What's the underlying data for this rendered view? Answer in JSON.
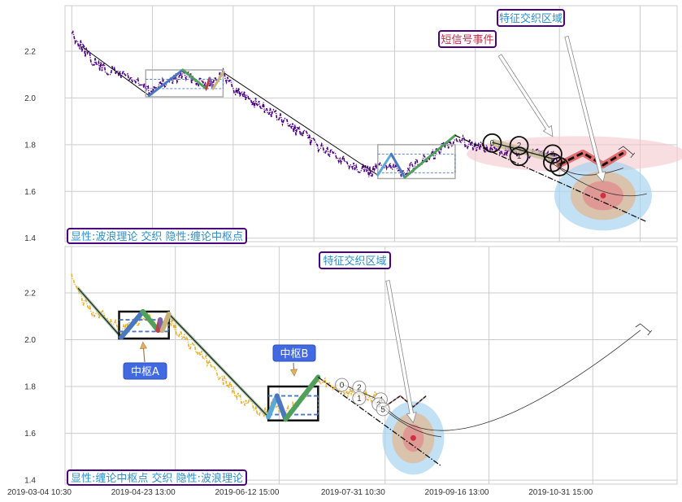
{
  "chart_data": [
    {
      "panel": "top",
      "type": "line",
      "xlim": [
        "2019-03-02",
        "2019-08-31"
      ],
      "ylim": [
        1.385,
        2.395
      ],
      "yticks": [
        1.4,
        1.6,
        1.8,
        2.0,
        2.2
      ],
      "ytick_labels": [
        "1.4",
        "1.6",
        "1.8",
        "2.0",
        "2.2"
      ],
      "xgrid_dates": [
        "2019-03-04",
        "2019-03-28",
        "2019-04-21",
        "2019-05-15",
        "2019-06-08",
        "2019-07-02",
        "2019-07-27",
        "2019-08-20"
      ],
      "grid": true,
      "legend_text": "显性:波浪理论 交织 隐性:缠论中枢点",
      "colors": {
        "price": "#4b0082",
        "legend_border": "#4b0082",
        "legend_text": "#2e8fc8"
      },
      "price_series": [
        [
          "2019-03-04",
          2.28
        ],
        [
          "2019-03-06",
          2.24
        ],
        [
          "2019-03-10",
          2.16
        ],
        [
          "2019-03-14",
          2.12
        ],
        [
          "2019-03-20",
          2.1
        ],
        [
          "2019-03-27",
          2.03
        ],
        [
          "2019-04-02",
          2.07
        ],
        [
          "2019-04-06",
          2.1
        ],
        [
          "2019-04-13",
          2.06
        ],
        [
          "2019-04-18",
          2.1
        ],
        [
          "2019-04-22",
          2.03
        ],
        [
          "2019-05-01",
          1.95
        ],
        [
          "2019-05-10",
          1.86
        ],
        [
          "2019-05-20",
          1.76
        ],
        [
          "2019-06-01",
          1.68
        ],
        [
          "2019-06-05",
          1.72
        ],
        [
          "2019-06-09",
          1.68
        ],
        [
          "2019-06-18",
          1.74
        ],
        [
          "2019-06-26",
          1.83
        ],
        [
          "2019-07-05",
          1.78
        ],
        [
          "2019-07-15",
          1.77
        ],
        [
          "2019-07-27",
          1.74
        ]
      ],
      "trend_lines": [
        [
          [
            "2019-03-07",
            2.22
          ],
          [
            "2019-03-27",
            2.01
          ]
        ],
        [
          [
            "2019-04-18",
            2.11
          ],
          [
            "2019-06-03",
            1.67
          ]
        ]
      ],
      "pivots": [
        {
          "name": "A",
          "from": "2019-03-26",
          "to": "2019-04-18",
          "high": 2.12,
          "low": 2.005,
          "inner_high": 2.08,
          "inner_low": 2.04
        },
        {
          "name": "B",
          "from": "2019-06-03",
          "to": "2019-06-26",
          "high": 1.8,
          "low": 1.655,
          "inner_high": 1.76,
          "inner_low": 1.68
        }
      ],
      "pivot_style": "thin-gray",
      "strokes": [
        {
          "from": [
            "2019-03-27",
            2.01
          ],
          "to": [
            "2019-04-06",
            2.12
          ],
          "color": "#4a78c0"
        },
        {
          "from": [
            "2019-04-06",
            2.12
          ],
          "to": [
            "2019-04-13",
            2.04
          ],
          "color": "#4ea05a"
        },
        {
          "from": [
            "2019-04-13",
            2.04
          ],
          "to": [
            "2019-04-14",
            2.085
          ],
          "color": "#c04040"
        },
        {
          "from": [
            "2019-04-14",
            2.085
          ],
          "to": [
            "2019-04-15",
            2.04
          ],
          "color": "#8060b0"
        },
        {
          "from": [
            "2019-04-15",
            2.04
          ],
          "to": [
            "2019-04-18",
            2.11
          ],
          "color": "#c8b478"
        },
        {
          "from": [
            "2019-06-03",
            1.67
          ],
          "to": [
            "2019-06-07",
            1.76
          ],
          "color": "#5aaad8"
        },
        {
          "from": [
            "2019-06-07",
            1.76
          ],
          "to": [
            "2019-06-11",
            1.66
          ],
          "color": "#4a78c0"
        },
        {
          "from": [
            "2019-06-11",
            1.66
          ],
          "to": [
            "2019-06-26",
            1.84
          ],
          "color": "#4ea05a"
        }
      ],
      "projection_line": [
        [
          "2019-06-26",
          1.84
        ],
        [
          "2019-08-22",
          1.47
        ]
      ],
      "signal_segment": [
        [
          "2019-07-07",
          1.81
        ],
        [
          "2019-07-25",
          1.74
        ]
      ],
      "signals": [
        {
          "label": "0",
          "date": "2019-07-07",
          "price": 1.807
        },
        {
          "label": "2",
          "date": "2019-07-15",
          "price": 1.796
        },
        {
          "label": "1",
          "date": "2019-07-15",
          "price": 1.75
        },
        {
          "label": "4",
          "date": "2019-07-25",
          "price": 1.76
        },
        {
          "label": "3",
          "date": "2019-07-25",
          "price": 1.724
        },
        {
          "label": "5",
          "date": "2019-07-27",
          "price": 1.706
        }
      ],
      "zigzag": [
        [
          "2019-07-27",
          1.715
        ],
        [
          "2019-08-03",
          1.765
        ],
        [
          "2019-08-09",
          1.713
        ],
        [
          "2019-08-15",
          1.765
        ]
      ],
      "zigzag_color": "#e06060",
      "interaction_zone_center": [
        "2019-08-03",
        1.76
      ],
      "target_center": [
        "2019-08-09",
        1.582
      ],
      "arcs": [
        [
          [
            "2019-07-27",
            1.705
          ],
          [
            "2019-08-04",
            1.67
          ],
          [
            "2019-08-15",
            1.7
          ]
        ],
        [
          [
            "2019-07-25",
            1.72
          ],
          [
            "2019-08-09",
            1.6
          ],
          [
            "2019-08-22",
            1.59
          ]
        ]
      ],
      "annotations": [
        {
          "text": "短信号事件",
          "color": "#c0304a",
          "target": [
            "2019-07-25",
            1.835
          ]
        },
        {
          "text": "特征交织区域",
          "color": "#2e8fc8",
          "target": [
            "2019-08-09",
            1.64
          ]
        }
      ]
    },
    {
      "panel": "bottom",
      "type": "line",
      "xlim": [
        "2019-03-01",
        "2019-12-09"
      ],
      "ylim": [
        1.383,
        2.398
      ],
      "yticks": [
        1.4,
        1.6,
        1.8,
        2.0,
        2.2
      ],
      "ytick_labels": [
        "1.4",
        "1.6",
        "1.8",
        "2.0",
        "2.2"
      ],
      "xticks": [
        {
          "date": "2019-03-04",
          "label": "2019-03-04 10:30"
        },
        {
          "date": "2019-04-21",
          "label": "2019-04-23 13:00"
        },
        {
          "date": "2019-06-08",
          "label": "2019-06-12 15:00"
        },
        {
          "date": "2019-07-27",
          "label": "2019-07-31 10:30"
        },
        {
          "date": "2019-09-13",
          "label": "2019-09-16 13:00"
        },
        {
          "date": "2019-10-31",
          "label": "2019-10-31 15:00"
        }
      ],
      "grid": true,
      "legend_text": "显性:缠论中枢点 交织 隐性:波浪理论",
      "colors": {
        "price": "#e8b030",
        "legend_border": "#4b0082",
        "legend_text": "#2e8fc8",
        "pivot_label_bg": "#4169e1",
        "pivot_arrow": "#e8a030"
      },
      "price_series": [
        [
          "2019-03-04",
          2.28
        ],
        [
          "2019-03-06",
          2.24
        ],
        [
          "2019-03-10",
          2.16
        ],
        [
          "2019-03-14",
          2.12
        ],
        [
          "2019-03-20",
          2.1
        ],
        [
          "2019-03-27",
          2.03
        ],
        [
          "2019-04-02",
          2.07
        ],
        [
          "2019-04-06",
          2.1
        ],
        [
          "2019-04-13",
          2.06
        ],
        [
          "2019-04-18",
          2.1
        ],
        [
          "2019-04-22",
          2.03
        ],
        [
          "2019-05-01",
          1.95
        ],
        [
          "2019-05-10",
          1.86
        ],
        [
          "2019-05-20",
          1.76
        ],
        [
          "2019-06-01",
          1.68
        ],
        [
          "2019-06-05",
          1.72
        ],
        [
          "2019-06-09",
          1.68
        ],
        [
          "2019-06-18",
          1.74
        ],
        [
          "2019-06-26",
          1.83
        ],
        [
          "2019-07-05",
          1.78
        ],
        [
          "2019-07-15",
          1.77
        ],
        [
          "2019-07-27",
          1.74
        ]
      ],
      "trend_lines": [
        [
          [
            "2019-03-07",
            2.22
          ],
          [
            "2019-03-27",
            2.01
          ]
        ],
        [
          [
            "2019-04-18",
            2.11
          ],
          [
            "2019-06-03",
            1.67
          ]
        ]
      ],
      "pivots": [
        {
          "name": "A",
          "from": "2019-03-26",
          "to": "2019-04-18",
          "high": 2.12,
          "low": 2.005,
          "inner_high": 2.085,
          "inner_low": 2.035
        },
        {
          "name": "B",
          "from": "2019-06-03",
          "to": "2019-06-26",
          "high": 1.8,
          "low": 1.655,
          "inner_high": 1.76,
          "inner_low": 1.68
        }
      ],
      "pivot_style": "thick-black",
      "strokes": [
        {
          "from": [
            "2019-03-27",
            2.01
          ],
          "to": [
            "2019-04-06",
            2.12
          ],
          "color": "#4a78c0"
        },
        {
          "from": [
            "2019-04-06",
            2.12
          ],
          "to": [
            "2019-04-13",
            2.04
          ],
          "color": "#4ea05a"
        },
        {
          "from": [
            "2019-04-13",
            2.04
          ],
          "to": [
            "2019-04-14",
            2.085
          ],
          "color": "#c04040"
        },
        {
          "from": [
            "2019-04-14",
            2.085
          ],
          "to": [
            "2019-04-15",
            2.04
          ],
          "color": "#8060b0"
        },
        {
          "from": [
            "2019-04-15",
            2.04
          ],
          "to": [
            "2019-04-18",
            2.11
          ],
          "color": "#c8b478"
        },
        {
          "from": [
            "2019-06-03",
            1.67
          ],
          "to": [
            "2019-06-07",
            1.76
          ],
          "color": "#5aaad8"
        },
        {
          "from": [
            "2019-06-07",
            1.76
          ],
          "to": [
            "2019-06-11",
            1.66
          ],
          "color": "#4a78c0"
        },
        {
          "from": [
            "2019-06-11",
            1.66
          ],
          "to": [
            "2019-06-26",
            1.84
          ],
          "color": "#4ea05a"
        }
      ],
      "projection_line": [
        [
          "2019-06-26",
          1.84
        ],
        [
          "2019-08-22",
          1.46
        ]
      ],
      "signal_segment": [
        [
          "2019-07-07",
          1.81
        ],
        [
          "2019-07-25",
          1.74
        ]
      ],
      "signals": [
        {
          "label": "0",
          "date": "2019-07-07",
          "price": 1.807
        },
        {
          "label": "2",
          "date": "2019-07-15",
          "price": 1.796
        },
        {
          "label": "1",
          "date": "2019-07-15",
          "price": 1.75
        },
        {
          "label": "4",
          "date": "2019-07-25",
          "price": 1.745
        },
        {
          "label": "3",
          "date": "2019-07-24",
          "price": 1.724
        },
        {
          "label": "5",
          "date": "2019-07-26",
          "price": 1.703
        }
      ],
      "zigzag": [
        [
          "2019-07-27",
          1.715
        ],
        [
          "2019-08-03",
          1.76
        ],
        [
          "2019-08-09",
          1.713
        ],
        [
          "2019-08-15",
          1.76
        ]
      ],
      "zigzag_color": "#c06060",
      "target_center": [
        "2019-08-09",
        1.58
      ],
      "arcs": [
        [
          [
            "2019-07-27",
            1.713
          ],
          [
            "2019-09-10",
            1.64
          ],
          [
            "2019-11-22",
            2.04
          ]
        ],
        [
          [
            "2019-07-27",
            1.7
          ],
          [
            "2019-08-09",
            1.62
          ],
          [
            "2019-08-22",
            1.585
          ]
        ]
      ],
      "annotations": [
        {
          "text": "特征交织区域",
          "color": "#2e8fc8",
          "target": [
            "2019-08-09",
            1.645
          ]
        },
        {
          "text": "中枢A",
          "color": "#ffffff",
          "target": [
            "2019-04-06",
            1.99
          ]
        },
        {
          "text": "中枢B",
          "color": "#ffffff",
          "target": [
            "2019-06-15",
            1.845
          ]
        }
      ]
    }
  ]
}
